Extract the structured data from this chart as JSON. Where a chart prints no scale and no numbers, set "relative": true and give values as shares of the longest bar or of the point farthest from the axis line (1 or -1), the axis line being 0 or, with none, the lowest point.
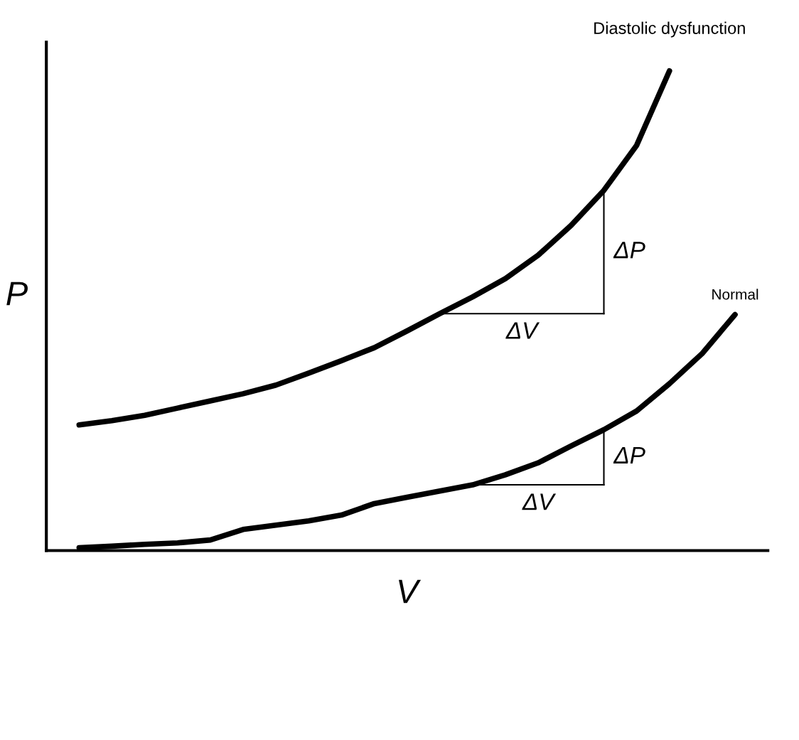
{
  "chart_data": {
    "type": "line",
    "relative": true,
    "xlabel": "V",
    "ylabel": "P",
    "categories": [
      null,
      null,
      null,
      null,
      null,
      null,
      null,
      null,
      null,
      null,
      null,
      null,
      null,
      null,
      null,
      null,
      null,
      null,
      null,
      null,
      null
    ],
    "series": [
      {
        "name": "Diastolic dysfunction",
        "color": "#000000",
        "values": [
          0.262,
          0.271,
          0.282,
          0.297,
          0.312,
          0.327,
          0.345,
          0.37,
          0.396,
          0.423,
          0.458,
          0.494,
          0.529,
          0.567,
          0.616,
          0.678,
          0.751,
          0.845,
          1.0,
          null,
          null
        ]
      },
      {
        "name": "Normal",
        "color": "#000000",
        "values": [
          0.006,
          0.009,
          0.013,
          0.016,
          0.022,
          0.044,
          0.053,
          0.062,
          0.074,
          0.098,
          0.111,
          0.124,
          0.137,
          0.158,
          0.183,
          0.218,
          0.252,
          0.291,
          0.348,
          0.411,
          0.492
        ]
      }
    ],
    "annotations": [
      "ΔV",
      "ΔP",
      "ΔV",
      "ΔP"
    ]
  }
}
